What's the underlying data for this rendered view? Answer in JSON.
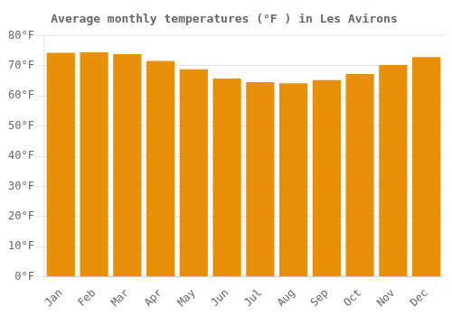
{
  "chart_data": {
    "type": "bar",
    "title": "Average monthly temperatures (°F ) in Les Avirons",
    "categories": [
      "Jan",
      "Feb",
      "Mar",
      "Apr",
      "May",
      "Jun",
      "Jul",
      "Aug",
      "Sep",
      "Oct",
      "Nov",
      "Dec"
    ],
    "values": [
      74.3,
      74.5,
      73.9,
      71.6,
      68.9,
      65.8,
      64.6,
      64.2,
      65.3,
      67.3,
      70.3,
      72.9
    ],
    "color": "#E8900A",
    "ylim": [
      0,
      80
    ],
    "yticks": [
      {
        "value": 0,
        "label": "0°F"
      },
      {
        "value": 10,
        "label": "10°F"
      },
      {
        "value": 20,
        "label": "20°F"
      },
      {
        "value": 30,
        "label": "30°F"
      },
      {
        "value": 40,
        "label": "40°F"
      },
      {
        "value": 50,
        "label": "50°F"
      },
      {
        "value": 60,
        "label": "60°F"
      },
      {
        "value": 70,
        "label": "70°F"
      },
      {
        "value": 80,
        "label": "80°F"
      }
    ],
    "grid": true
  }
}
